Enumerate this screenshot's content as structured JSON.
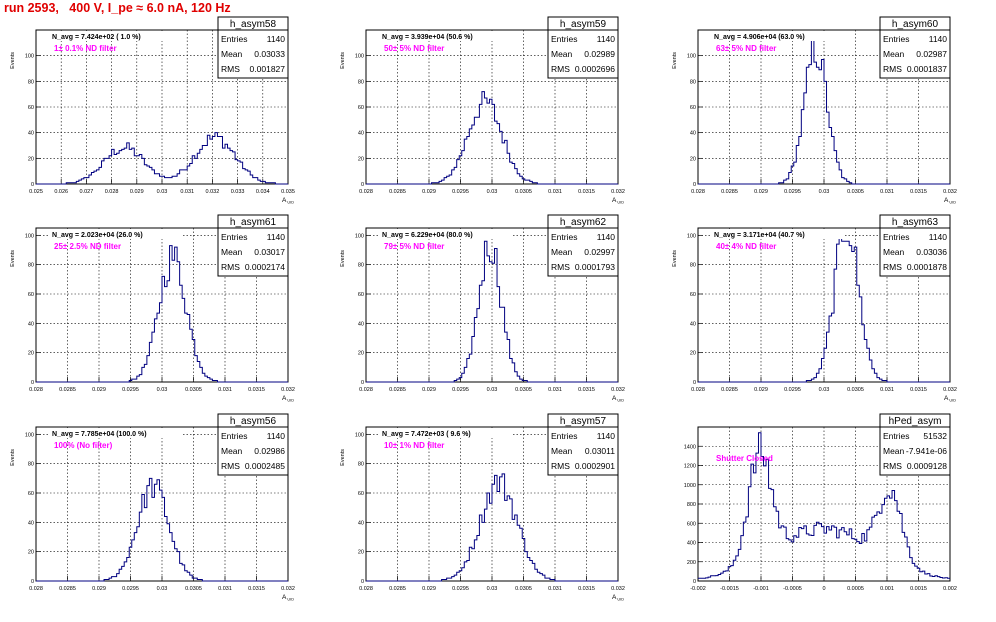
{
  "header": "run 2593,   400 V, I_pe ≈ 6.0 nA, 120 Hz",
  "colors": {
    "hist": "#000080",
    "annotation": "#ff00ff",
    "header": "#e00000"
  },
  "chart_data": [
    {
      "type": "bar",
      "name": "h_asym58",
      "entries": "1140",
      "mean": "0.03033",
      "rms": "0.001827",
      "navg": "N_avg = 7.424e+02 ( 1.0 %)",
      "filter": "1± 0.1% ND filter",
      "ylabel": "Events",
      "xlabel": "A_UID",
      "xlim": [
        0.025,
        0.035
      ],
      "ylim": [
        0,
        120
      ],
      "yticks": [
        0,
        20,
        40,
        60,
        80,
        100
      ],
      "xticks": [
        "0.025",
        "0.026",
        "0.027",
        "0.028",
        "0.029",
        "0.03",
        "0.031",
        "0.032",
        "0.033",
        "0.034",
        "0.035"
      ],
      "shape": [
        [
          0.0285,
          0.0008,
          25
        ],
        [
          0.0321,
          0.0008,
          32
        ]
      ],
      "peak": 40
    },
    {
      "type": "bar",
      "name": "h_asym59",
      "entries": "1140",
      "mean": "0.02989",
      "rms": "0.0002696",
      "navg": "N_avg = 3.939e+04 (50.6 %)",
      "filter": "50± 5% ND filter",
      "ylabel": "Events",
      "xlabel": "A_UID",
      "xlim": [
        0.028,
        0.032
      ],
      "ylim": [
        0,
        120
      ],
      "yticks": [
        0,
        20,
        40,
        60,
        80,
        100
      ],
      "xticks": [
        "0.028",
        "0.0285",
        "0.029",
        "0.0295",
        "0.03",
        "0.0305",
        "0.031",
        "0.0315",
        "0.032"
      ],
      "shape": [
        [
          0.02989,
          0.00027,
          70
        ]
      ],
      "peak": 72
    },
    {
      "type": "bar",
      "name": "h_asym60",
      "entries": "1140",
      "mean": "0.02987",
      "rms": "0.0001837",
      "navg": "N_avg = 4.906e+04 (63.0 %)",
      "filter": "63± 5% ND filter",
      "ylabel": "Events",
      "xlabel": "A_UID",
      "xlim": [
        0.028,
        0.032
      ],
      "ylim": [
        0,
        120
      ],
      "yticks": [
        0,
        20,
        40,
        60,
        80,
        100
      ],
      "xticks": [
        "0.028",
        "0.0285",
        "0.029",
        "0.0295",
        "0.03",
        "0.0305",
        "0.031",
        "0.0315",
        "0.032"
      ],
      "shape": [
        [
          0.02987,
          0.00018,
          100
        ]
      ],
      "peak": 112
    },
    {
      "type": "bar",
      "name": "h_asym61",
      "entries": "1140",
      "mean": "0.03017",
      "rms": "0.0002174",
      "navg": "N_avg = 2.023e+04 (26.0 %)",
      "filter": "25± 2.5% ND filter",
      "ylabel": "Events",
      "xlabel": "A_UID",
      "xlim": [
        0.028,
        0.032
      ],
      "ylim": [
        0,
        105
      ],
      "yticks": [
        0,
        20,
        40,
        60,
        80,
        100
      ],
      "xticks": [
        "0.028",
        "0.0285",
        "0.029",
        "0.0295",
        "0.03",
        "0.0305",
        "0.031",
        "0.0315",
        "0.032"
      ],
      "shape": [
        [
          0.03017,
          0.00022,
          85
        ]
      ],
      "peak": 93
    },
    {
      "type": "bar",
      "name": "h_asym62",
      "entries": "1140",
      "mean": "0.02997",
      "rms": "0.0001793",
      "navg": "N_avg = 6.229e+04 (80.0 %)",
      "filter": "79± 5% ND filter",
      "ylabel": "Events",
      "xlabel": "A_UID",
      "xlim": [
        0.028,
        0.032
      ],
      "ylim": [
        0,
        105
      ],
      "yticks": [
        0,
        20,
        40,
        60,
        80,
        100
      ],
      "xticks": [
        "0.028",
        "0.0285",
        "0.029",
        "0.0295",
        "0.03",
        "0.0305",
        "0.031",
        "0.0315",
        "0.032"
      ],
      "shape": [
        [
          0.02997,
          0.00018,
          95
        ]
      ],
      "peak": 96
    },
    {
      "type": "bar",
      "name": "h_asym63",
      "entries": "1140",
      "mean": "0.03036",
      "rms": "0.0001878",
      "navg": "N_avg = 3.171e+04 (40.7 %)",
      "filter": "40± 4% ND filter",
      "ylabel": "Events",
      "xlabel": "A_UID",
      "xlim": [
        0.028,
        0.032
      ],
      "ylim": [
        0,
        105
      ],
      "yticks": [
        0,
        20,
        40,
        60,
        80,
        100
      ],
      "xticks": [
        "0.028",
        "0.0285",
        "0.029",
        "0.0295",
        "0.03",
        "0.0305",
        "0.031",
        "0.0315",
        "0.032"
      ],
      "shape": [
        [
          0.03036,
          0.00019,
          92
        ]
      ],
      "peak": 101
    },
    {
      "type": "bar",
      "name": "h_asym56",
      "entries": "1140",
      "mean": "0.02986",
      "rms": "0.0002485",
      "navg": "N_avg = 7.785e+04 (100.0 %)",
      "filter": "100% (No filter)",
      "ylabel": "Events",
      "xlabel": "A_UID",
      "xlim": [
        0.028,
        0.032
      ],
      "ylim": [
        0,
        105
      ],
      "yticks": [
        0,
        20,
        40,
        60,
        80,
        100
      ],
      "xticks": [
        "0.028",
        "0.0285",
        "0.029",
        "0.0295",
        "0.03",
        "0.0305",
        "0.031",
        "0.0315",
        "0.032"
      ],
      "shape": [
        [
          0.02986,
          0.00025,
          65
        ]
      ],
      "peak": 70
    },
    {
      "type": "bar",
      "name": "h_asym57",
      "entries": "1140",
      "mean": "0.03011",
      "rms": "0.0002901",
      "navg": "N_avg = 7.472e+03 ( 9.6 %)",
      "filter": "10± 1% ND filter",
      "ylabel": "Events",
      "xlabel": "A_UID",
      "xlim": [
        0.028,
        0.032
      ],
      "ylim": [
        0,
        105
      ],
      "yticks": [
        0,
        20,
        40,
        60,
        80,
        100
      ],
      "xticks": [
        "0.028",
        "0.0285",
        "0.029",
        "0.0295",
        "0.03",
        "0.0305",
        "0.031",
        "0.0315",
        "0.032"
      ],
      "shape": [
        [
          0.03011,
          0.00029,
          68
        ]
      ],
      "peak": 73
    },
    {
      "type": "bar",
      "name": "hPed_asym",
      "entries": "51532",
      "mean": "-7.941e-06",
      "rms": "0.0009128",
      "navg": "",
      "filter": "Shutter Closed",
      "ylabel": "",
      "xlabel": "",
      "xlim": [
        -0.002,
        0.002
      ],
      "ylim": [
        0,
        1600
      ],
      "yticks": [
        0,
        200,
        400,
        600,
        800,
        1000,
        1200,
        1400
      ],
      "xticks": [
        "-0.002",
        "-0.0015",
        "-0.001",
        "-0.0005",
        "0",
        "0.0005",
        "0.001",
        "0.0015",
        "0.002"
      ],
      "shape": [
        [
          -0.00102,
          0.00018,
          1130
        ],
        [
          0.00105,
          0.00018,
          760
        ],
        [
          -0.0004,
          0.0007,
          330
        ],
        [
          0.0004,
          0.0007,
          330
        ]
      ],
      "peak": 1540
    }
  ]
}
